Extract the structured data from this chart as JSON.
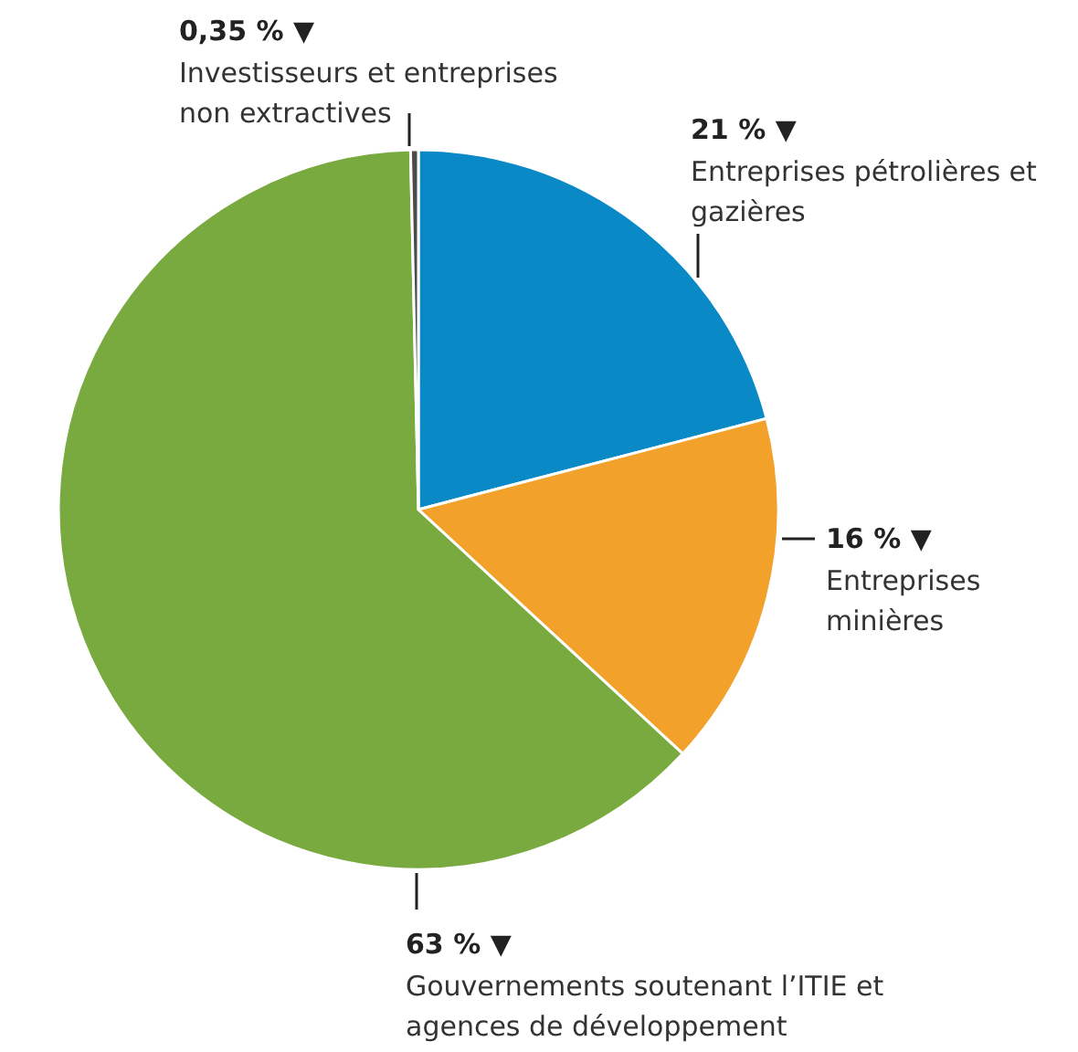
{
  "chart_data": {
    "type": "pie",
    "categories": [
      "Entreprises pétrolières et gazières",
      "Entreprises minières",
      "Gouvernements soutenant l’ITIE et agences de développement",
      "Investisseurs et entreprises non extractives"
    ],
    "values": [
      21,
      16,
      63,
      0.35
    ],
    "value_labels": [
      "21 % ▼",
      "16 % ▼",
      "63 % ▼",
      "0,35 % ▼"
    ],
    "colors": [
      "#0a89c7",
      "#f2a12b",
      "#79aa3f",
      "#4b4b4b"
    ],
    "legend": false
  }
}
